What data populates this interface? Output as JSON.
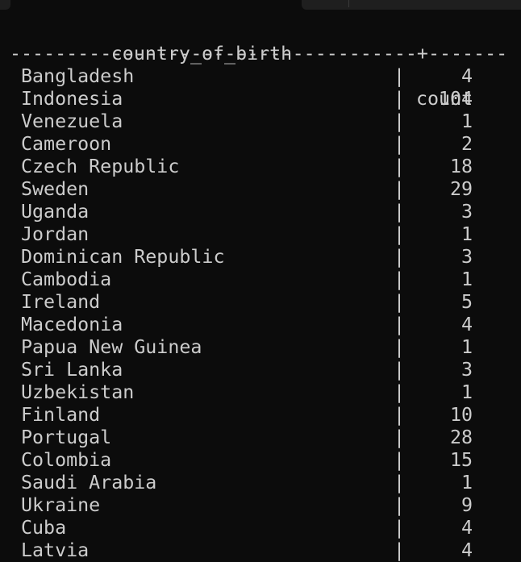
{
  "table": {
    "header": {
      "country": "country_of_birth",
      "separator": "|",
      "count": "count"
    },
    "rule": "------------------------------------+-------",
    "rows": [
      {
        "country": "Bangladesh",
        "count": "4"
      },
      {
        "country": "Indonesia",
        "count": "104"
      },
      {
        "country": "Venezuela",
        "count": "1"
      },
      {
        "country": "Cameroon",
        "count": "2"
      },
      {
        "country": "Czech Republic",
        "count": "18"
      },
      {
        "country": "Sweden",
        "count": "29"
      },
      {
        "country": "Uganda",
        "count": "3"
      },
      {
        "country": "Jordan",
        "count": "1"
      },
      {
        "country": "Dominican Republic",
        "count": "3"
      },
      {
        "country": "Cambodia",
        "count": "1"
      },
      {
        "country": "Ireland",
        "count": "5"
      },
      {
        "country": "Macedonia",
        "count": "4"
      },
      {
        "country": "Papua New Guinea",
        "count": "1"
      },
      {
        "country": "Sri Lanka",
        "count": "3"
      },
      {
        "country": "Uzbekistan",
        "count": "1"
      },
      {
        "country": "Finland",
        "count": "10"
      },
      {
        "country": "Portugal",
        "count": "28"
      },
      {
        "country": "Colombia",
        "count": "15"
      },
      {
        "country": "Saudi Arabia",
        "count": "1"
      },
      {
        "country": "Ukraine",
        "count": "9"
      },
      {
        "country": "Cuba",
        "count": "4"
      },
      {
        "country": "Latvia",
        "count": "4"
      }
    ]
  }
}
